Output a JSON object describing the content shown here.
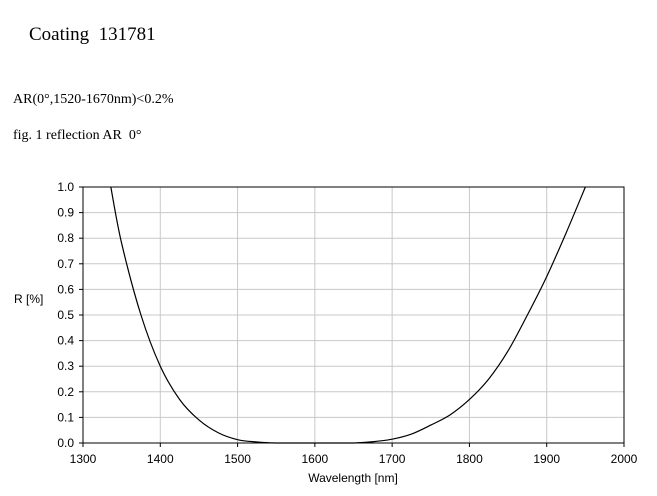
{
  "header": {
    "title": "Coating  131781",
    "spec": "AR(0°,1520-1670nm)<0.2%",
    "caption": "fig. 1 reflection AR  0°"
  },
  "chart_data": {
    "type": "line",
    "xlabel": "Wavelength [nm]",
    "ylabel": "R [%]",
    "xlim": [
      1300,
      2000
    ],
    "ylim": [
      0.0,
      1.0
    ],
    "xticks": [
      1300,
      1400,
      1500,
      1600,
      1700,
      1800,
      1900,
      2000
    ],
    "xtick_labels": [
      "1300",
      "1400",
      "1500",
      "1600",
      "1700",
      "1800",
      "1900",
      "2000"
    ],
    "yticks": [
      0.0,
      0.1,
      0.2,
      0.3,
      0.4,
      0.5,
      0.6,
      0.7,
      0.8,
      0.9,
      1.0
    ],
    "ytick_labels": [
      "0.0",
      "0.1",
      "0.2",
      "0.3",
      "0.4",
      "0.5",
      "0.6",
      "0.7",
      "0.8",
      "0.9",
      "1.0"
    ],
    "grid": true,
    "color": "#000000",
    "grid_color": "#c8c8c8",
    "series": [
      {
        "x": [
          1336,
          1350,
          1375,
          1400,
          1425,
          1450,
          1475,
          1500,
          1525,
          1550,
          1575,
          1600,
          1625,
          1650,
          1675,
          1700,
          1725,
          1750,
          1775,
          1800,
          1825,
          1850,
          1875,
          1900,
          1925,
          1950
        ],
        "y": [
          1.0,
          0.78,
          0.5,
          0.3,
          0.17,
          0.09,
          0.04,
          0.013,
          0.004,
          0.0,
          0.0,
          0.0,
          0.0,
          0.0,
          0.005,
          0.015,
          0.035,
          0.07,
          0.11,
          0.17,
          0.25,
          0.36,
          0.5,
          0.65,
          0.82,
          1.0
        ]
      }
    ]
  }
}
